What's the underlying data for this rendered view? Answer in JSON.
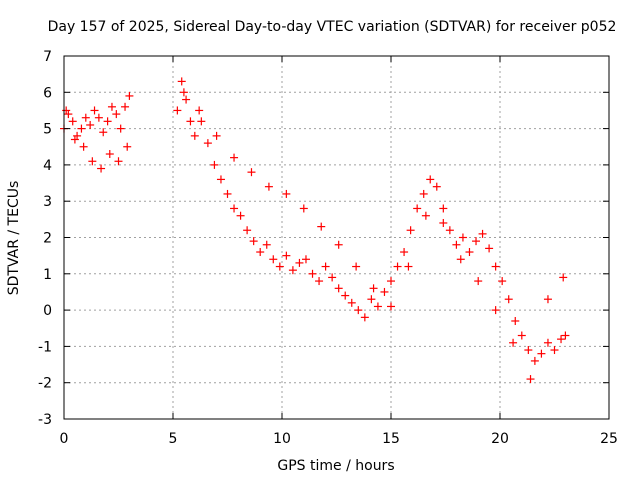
{
  "chart_data": {
    "type": "scatter",
    "title": "Day 157 of 2025, Sidereal Day-to-day VTEC variation (SDTVAR) for receiver p052",
    "xlabel": "GPS time / hours",
    "ylabel": "SDTVAR / TECUs",
    "xlim": [
      0,
      25
    ],
    "ylim": [
      -3,
      7
    ],
    "xticks": [
      "0",
      "5",
      "10",
      "15",
      "20",
      "25"
    ],
    "yticks": [
      "-3",
      "-2",
      "-1",
      "0",
      "1",
      "2",
      "3",
      "4",
      "5",
      "6",
      "7"
    ],
    "grid": true,
    "marker": "+",
    "series": [
      {
        "name": "SDTVAR",
        "color": "#ff0000",
        "x": [
          0.0,
          0.2,
          0.4,
          0.6,
          0.8,
          1.0,
          1.2,
          1.4,
          1.6,
          1.8,
          2.0,
          2.2,
          2.4,
          2.6,
          2.8,
          3.0,
          0.1,
          0.5,
          0.9,
          1.3,
          1.7,
          2.1,
          2.5,
          2.9,
          5.2,
          5.4,
          5.6,
          5.8,
          6.0,
          6.3,
          6.6,
          6.9,
          7.2,
          7.5,
          7.8,
          8.1,
          8.4,
          8.7,
          9.0,
          9.3,
          9.6,
          9.9,
          10.2,
          10.5,
          10.8,
          11.1,
          11.4,
          11.7,
          12.0,
          12.3,
          12.6,
          12.9,
          13.2,
          13.5,
          13.8,
          14.1,
          14.4,
          14.7,
          15.0,
          15.3,
          15.6,
          15.9,
          16.2,
          16.5,
          16.8,
          17.1,
          17.4,
          17.7,
          18.0,
          18.3,
          18.6,
          18.9,
          19.2,
          19.5,
          19.8,
          20.1,
          20.4,
          20.7,
          21.0,
          21.3,
          21.6,
          21.9,
          22.2,
          22.5,
          22.8,
          23.0,
          5.5,
          6.2,
          7.0,
          7.8,
          8.6,
          9.4,
          10.2,
          11.0,
          11.8,
          12.6,
          13.4,
          14.2,
          15.0,
          15.8,
          16.6,
          17.4,
          18.2,
          19.0,
          19.8,
          20.6,
          21.4,
          22.2,
          22.9
        ],
        "y": [
          5.0,
          5.4,
          5.2,
          4.8,
          5.0,
          5.3,
          5.1,
          5.5,
          5.3,
          4.9,
          5.2,
          5.6,
          5.4,
          5.0,
          5.6,
          5.9,
          5.5,
          4.7,
          4.5,
          4.1,
          3.9,
          4.3,
          4.1,
          4.5,
          5.5,
          6.3,
          5.8,
          5.2,
          4.8,
          5.2,
          4.6,
          4.0,
          3.6,
          3.2,
          2.8,
          2.6,
          2.2,
          1.9,
          1.6,
          1.8,
          1.4,
          1.2,
          1.5,
          1.1,
          1.3,
          1.4,
          1.0,
          0.8,
          1.2,
          0.9,
          0.6,
          0.4,
          0.2,
          0.0,
          -0.2,
          0.3,
          0.1,
          0.5,
          0.8,
          1.2,
          1.6,
          2.2,
          2.8,
          3.2,
          3.6,
          3.4,
          2.8,
          2.2,
          1.8,
          2.0,
          1.6,
          1.9,
          2.1,
          1.7,
          1.2,
          0.8,
          0.3,
          -0.3,
          -0.7,
          -1.1,
          -1.4,
          -1.2,
          -0.9,
          -1.1,
          -0.8,
          -0.7,
          6.0,
          5.5,
          4.8,
          4.2,
          3.8,
          3.4,
          3.2,
          2.8,
          2.3,
          1.8,
          1.2,
          0.6,
          0.1,
          1.2,
          2.6,
          2.4,
          1.4,
          0.8,
          0.0,
          -0.9,
          -1.9,
          0.3,
          0.9
        ]
      }
    ]
  }
}
